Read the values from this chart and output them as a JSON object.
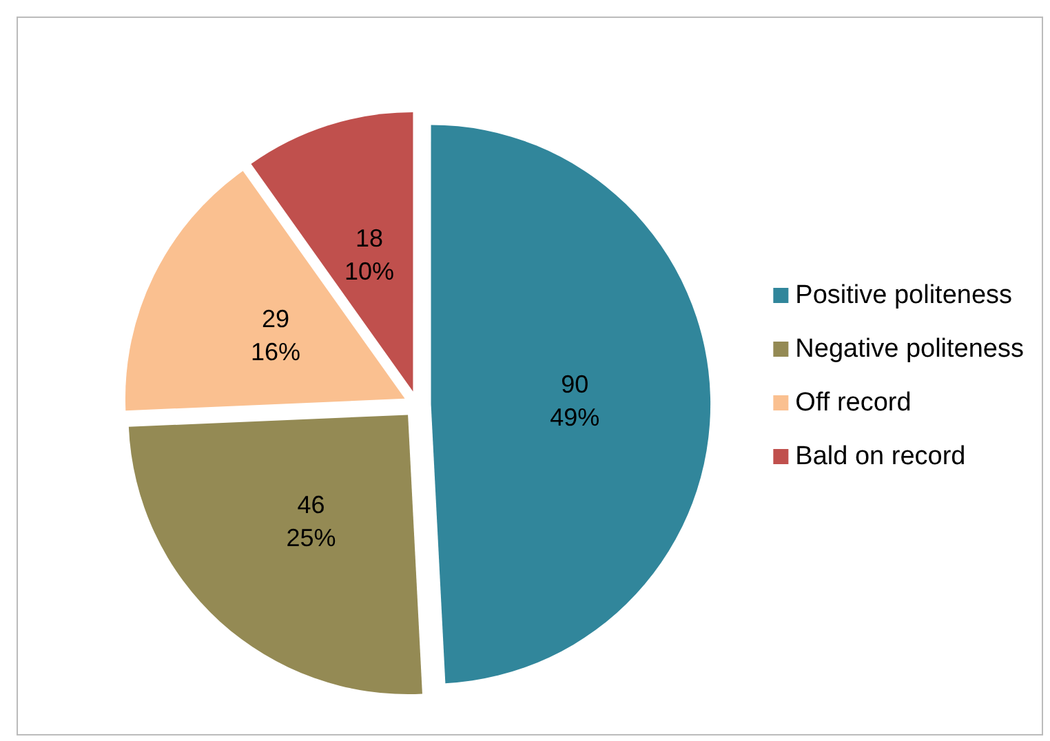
{
  "chart_data": {
    "type": "pie",
    "categories": [
      "Positive politeness",
      "Negative politeness",
      "Off record",
      "Bald on record"
    ],
    "values": [
      90,
      46,
      29,
      18
    ],
    "colors": [
      "#31869b",
      "#948a54",
      "#fac090",
      "#c0504d"
    ],
    "value_labels": [
      "90\n49%",
      "46\n25%",
      "29\n16%",
      "18\n10%"
    ],
    "legend": "right"
  }
}
